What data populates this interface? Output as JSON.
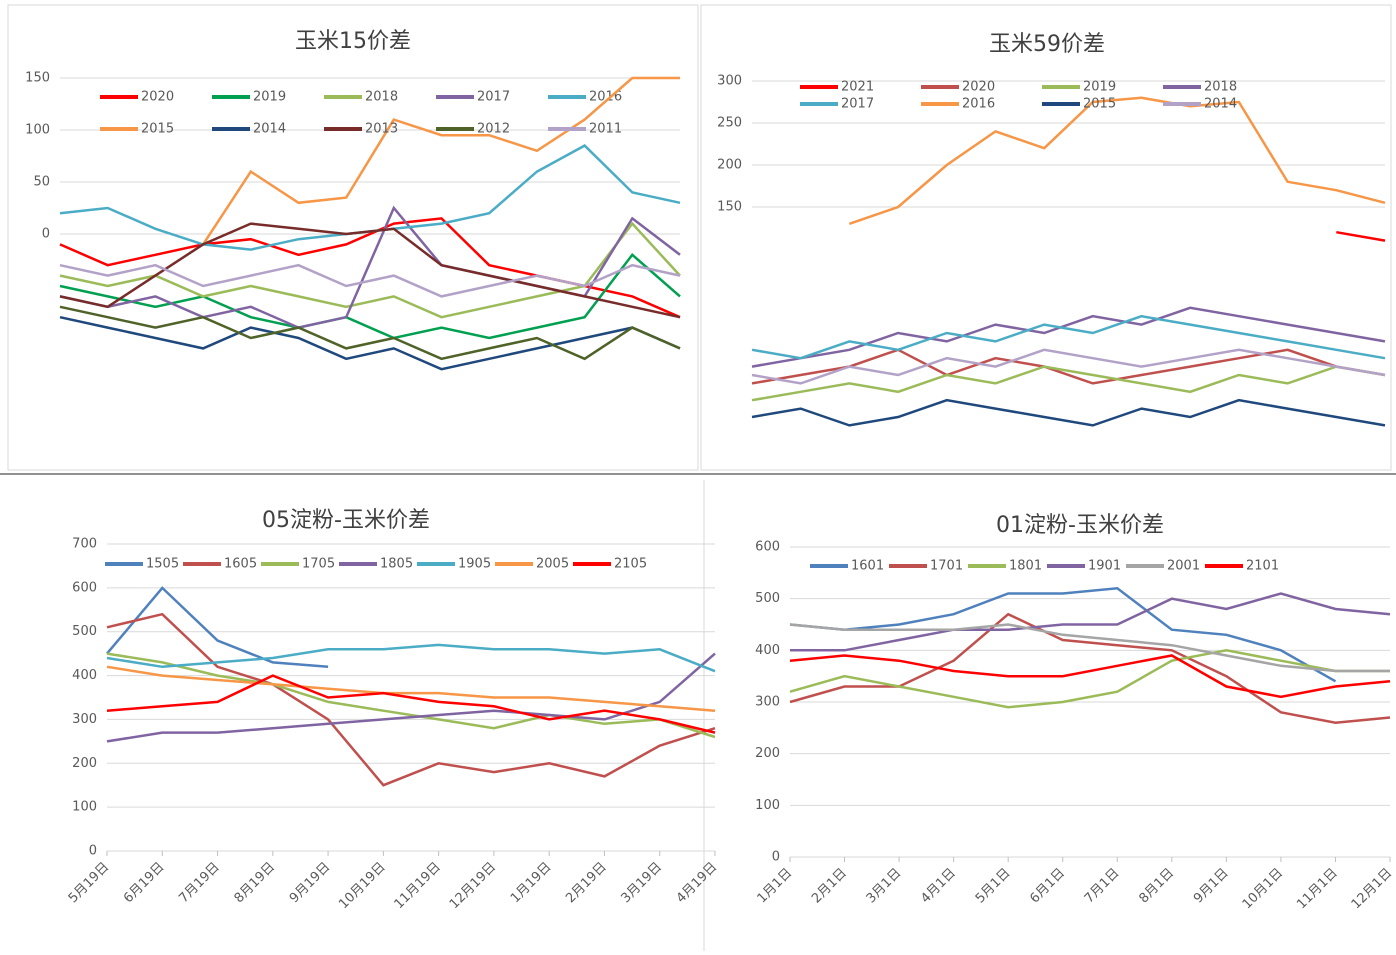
{
  "chart_data": [
    {
      "type": "line",
      "title": "玉米15价差",
      "ylim": [
        -200,
        150
      ],
      "yticks": [
        0,
        50,
        100,
        150
      ],
      "grid": true,
      "series": [
        {
          "name": "2020",
          "color": "#ff0000",
          "values": [
            -10,
            -30,
            -20,
            -10,
            -5,
            -20,
            -10,
            10,
            15,
            -30,
            -40,
            -50,
            -60,
            -80
          ]
        },
        {
          "name": "2019",
          "color": "#00a050",
          "values": [
            -50,
            -60,
            -70,
            -60,
            -80,
            -90,
            -80,
            -100,
            -90,
            -100,
            -90,
            -80,
            -20,
            -60
          ]
        },
        {
          "name": "2018",
          "color": "#9bbb59",
          "values": [
            -40,
            -50,
            -40,
            -60,
            -50,
            -60,
            -70,
            -60,
            -80,
            -70,
            -60,
            -50,
            10,
            -40
          ]
        },
        {
          "name": "2017",
          "color": "#8064a2",
          "values": [
            -60,
            -70,
            -60,
            -80,
            -70,
            -90,
            -80,
            25,
            -30,
            -40,
            -50,
            -60,
            15,
            -20
          ]
        },
        {
          "name": "2016",
          "color": "#4bacc6",
          "values": [
            20,
            25,
            5,
            -10,
            -15,
            -5,
            0,
            5,
            10,
            20,
            60,
            85,
            40,
            30
          ]
        },
        {
          "name": "2015",
          "color": "#f79646",
          "values": [
            null,
            null,
            null,
            -10,
            60,
            30,
            35,
            110,
            95,
            95,
            80,
            110,
            150,
            150
          ]
        },
        {
          "name": "2014",
          "color": "#1f497d",
          "values": [
            -80,
            -90,
            -100,
            -110,
            -90,
            -100,
            -120,
            -110,
            -130,
            -120,
            -110,
            -100,
            -90,
            -110
          ]
        },
        {
          "name": "2013",
          "color": "#772c2a",
          "values": [
            -60,
            -70,
            -40,
            -10,
            10,
            5,
            0,
            5,
            -30,
            -40,
            -50,
            -60,
            -70,
            -80
          ]
        },
        {
          "name": "2012",
          "color": "#4f6228",
          "values": [
            -70,
            -80,
            -90,
            -80,
            -100,
            -90,
            -110,
            -100,
            -120,
            -110,
            -100,
            -120,
            -90,
            -110
          ]
        },
        {
          "name": "2011",
          "color": "#b3a2c7",
          "values": [
            -30,
            -40,
            -30,
            -50,
            -40,
            -30,
            -50,
            -40,
            -60,
            -50,
            -40,
            -50,
            -30,
            -40
          ]
        }
      ]
    },
    {
      "type": "line",
      "title": "玉米59价差",
      "ylim": [
        -150,
        300
      ],
      "yticks": [
        150,
        200,
        250,
        300
      ],
      "grid": true,
      "series": [
        {
          "name": "2021",
          "color": "#ff0000",
          "values": [
            null,
            null,
            null,
            null,
            null,
            null,
            null,
            null,
            null,
            null,
            null,
            null,
            120,
            110
          ]
        },
        {
          "name": "2020",
          "color": "#c0504d",
          "values": [
            -60,
            -50,
            -40,
            -20,
            -50,
            -30,
            -40,
            -60,
            -50,
            -40,
            -30,
            -20,
            -40,
            -50
          ]
        },
        {
          "name": "2019",
          "color": "#9bbb59",
          "values": [
            -80,
            -70,
            -60,
            -70,
            -50,
            -60,
            -40,
            -50,
            -60,
            -70,
            -50,
            -60,
            -40,
            -50
          ]
        },
        {
          "name": "2018",
          "color": "#8064a2",
          "values": [
            -40,
            -30,
            -20,
            0,
            -10,
            10,
            0,
            20,
            10,
            30,
            20,
            10,
            0,
            -10
          ]
        },
        {
          "name": "2017",
          "color": "#4bacc6",
          "values": [
            -20,
            -30,
            -10,
            -20,
            0,
            -10,
            10,
            0,
            20,
            10,
            0,
            -10,
            -20,
            -30
          ]
        },
        {
          "name": "2016",
          "color": "#f79646",
          "values": [
            null,
            null,
            130,
            150,
            200,
            240,
            220,
            275,
            280,
            270,
            275,
            180,
            170,
            155
          ]
        },
        {
          "name": "2015",
          "color": "#1f497d",
          "values": [
            -100,
            -90,
            -110,
            -100,
            -80,
            -90,
            -100,
            -110,
            -90,
            -100,
            -80,
            -90,
            -100,
            -110
          ]
        },
        {
          "name": "2014",
          "color": "#b3a2c7",
          "values": [
            -50,
            -60,
            -40,
            -50,
            -30,
            -40,
            -20,
            -30,
            -40,
            -30,
            -20,
            -30,
            -40,
            -50
          ]
        }
      ]
    },
    {
      "type": "line",
      "title": "05淀粉-玉米价差",
      "ylim": [
        0,
        700
      ],
      "yticks": [
        0,
        100,
        200,
        300,
        400,
        500,
        600,
        700
      ],
      "grid": true,
      "categories": [
        "5月19日",
        "6月19日",
        "7月19日",
        "8月19日",
        "9月19日",
        "10月19日",
        "11月19日",
        "12月19日",
        "1月19日",
        "2月19日",
        "3月19日",
        "4月19日"
      ],
      "series": [
        {
          "name": "1505",
          "color": "#4f81bd",
          "values": [
            450,
            600,
            480,
            430,
            420,
            null,
            null,
            null,
            null,
            null,
            null,
            null
          ]
        },
        {
          "name": "1605",
          "color": "#c0504d",
          "values": [
            510,
            540,
            420,
            380,
            300,
            150,
            200,
            180,
            200,
            170,
            240,
            280
          ]
        },
        {
          "name": "1705",
          "color": "#9bbb59",
          "values": [
            450,
            430,
            400,
            380,
            340,
            320,
            300,
            280,
            310,
            290,
            300,
            260
          ]
        },
        {
          "name": "1805",
          "color": "#8064a2",
          "values": [
            250,
            270,
            270,
            280,
            290,
            300,
            310,
            320,
            310,
            300,
            340,
            450
          ]
        },
        {
          "name": "1905",
          "color": "#4bacc6",
          "values": [
            440,
            420,
            430,
            440,
            460,
            460,
            470,
            460,
            460,
            450,
            460,
            410
          ]
        },
        {
          "name": "2005",
          "color": "#f79646",
          "values": [
            420,
            400,
            390,
            380,
            370,
            360,
            360,
            350,
            350,
            340,
            330,
            320
          ]
        },
        {
          "name": "2105",
          "color": "#ff0000",
          "values": [
            320,
            330,
            340,
            400,
            350,
            360,
            340,
            330,
            300,
            320,
            300,
            270
          ]
        }
      ]
    },
    {
      "type": "line",
      "title": "01淀粉-玉米价差",
      "ylim": [
        0,
        600
      ],
      "yticks": [
        0,
        100,
        200,
        300,
        400,
        500,
        600
      ],
      "grid": true,
      "categories": [
        "1月1日",
        "2月1日",
        "3月1日",
        "4月1日",
        "5月1日",
        "6月1日",
        "7月1日",
        "8月1日",
        "9月1日",
        "10月1日",
        "11月1日",
        "12月1日"
      ],
      "series": [
        {
          "name": "1601",
          "color": "#4f81bd",
          "values": [
            450,
            440,
            450,
            470,
            510,
            510,
            520,
            440,
            430,
            400,
            340,
            null
          ]
        },
        {
          "name": "1701",
          "color": "#c0504d",
          "values": [
            300,
            330,
            330,
            380,
            470,
            420,
            410,
            400,
            350,
            280,
            260,
            270
          ]
        },
        {
          "name": "1801",
          "color": "#9bbb59",
          "values": [
            320,
            350,
            330,
            310,
            290,
            300,
            320,
            380,
            400,
            380,
            360,
            360
          ]
        },
        {
          "name": "1901",
          "color": "#8064a2",
          "values": [
            400,
            400,
            420,
            440,
            440,
            450,
            450,
            500,
            480,
            510,
            480,
            470
          ]
        },
        {
          "name": "2001",
          "color": "#a5a5a5",
          "values": [
            450,
            440,
            440,
            440,
            450,
            430,
            420,
            410,
            390,
            370,
            360,
            360
          ]
        },
        {
          "name": "2101",
          "color": "#ff0000",
          "values": [
            380,
            390,
            380,
            360,
            350,
            350,
            370,
            390,
            330,
            310,
            330,
            340
          ]
        }
      ]
    }
  ]
}
